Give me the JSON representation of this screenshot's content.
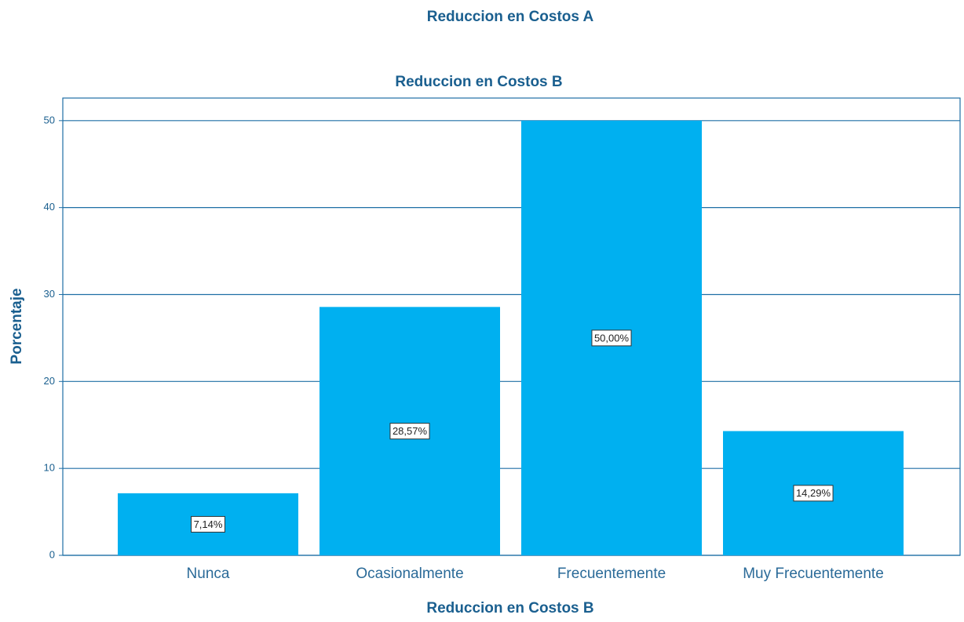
{
  "chart_data": {
    "type": "bar",
    "title": "Reduccion en Costos A",
    "subtitle": "Reduccion en Costos B",
    "x_label": "Reduccion en Costos B",
    "y_label": "Porcentaje",
    "categories": [
      "Nunca",
      "Ocasionalmente",
      "Frecuentemente",
      "Muy Frecuentemente"
    ],
    "values": [
      7.14,
      28.57,
      50,
      14.29
    ],
    "value_labels": [
      "7,14%",
      "28,57%",
      "50,00%",
      "14,29%"
    ],
    "color": "#00b0f0",
    "ylim": [
      0,
      52.6
    ],
    "yticks": [
      0,
      10,
      20,
      30,
      40,
      50
    ],
    "grid": true
  }
}
